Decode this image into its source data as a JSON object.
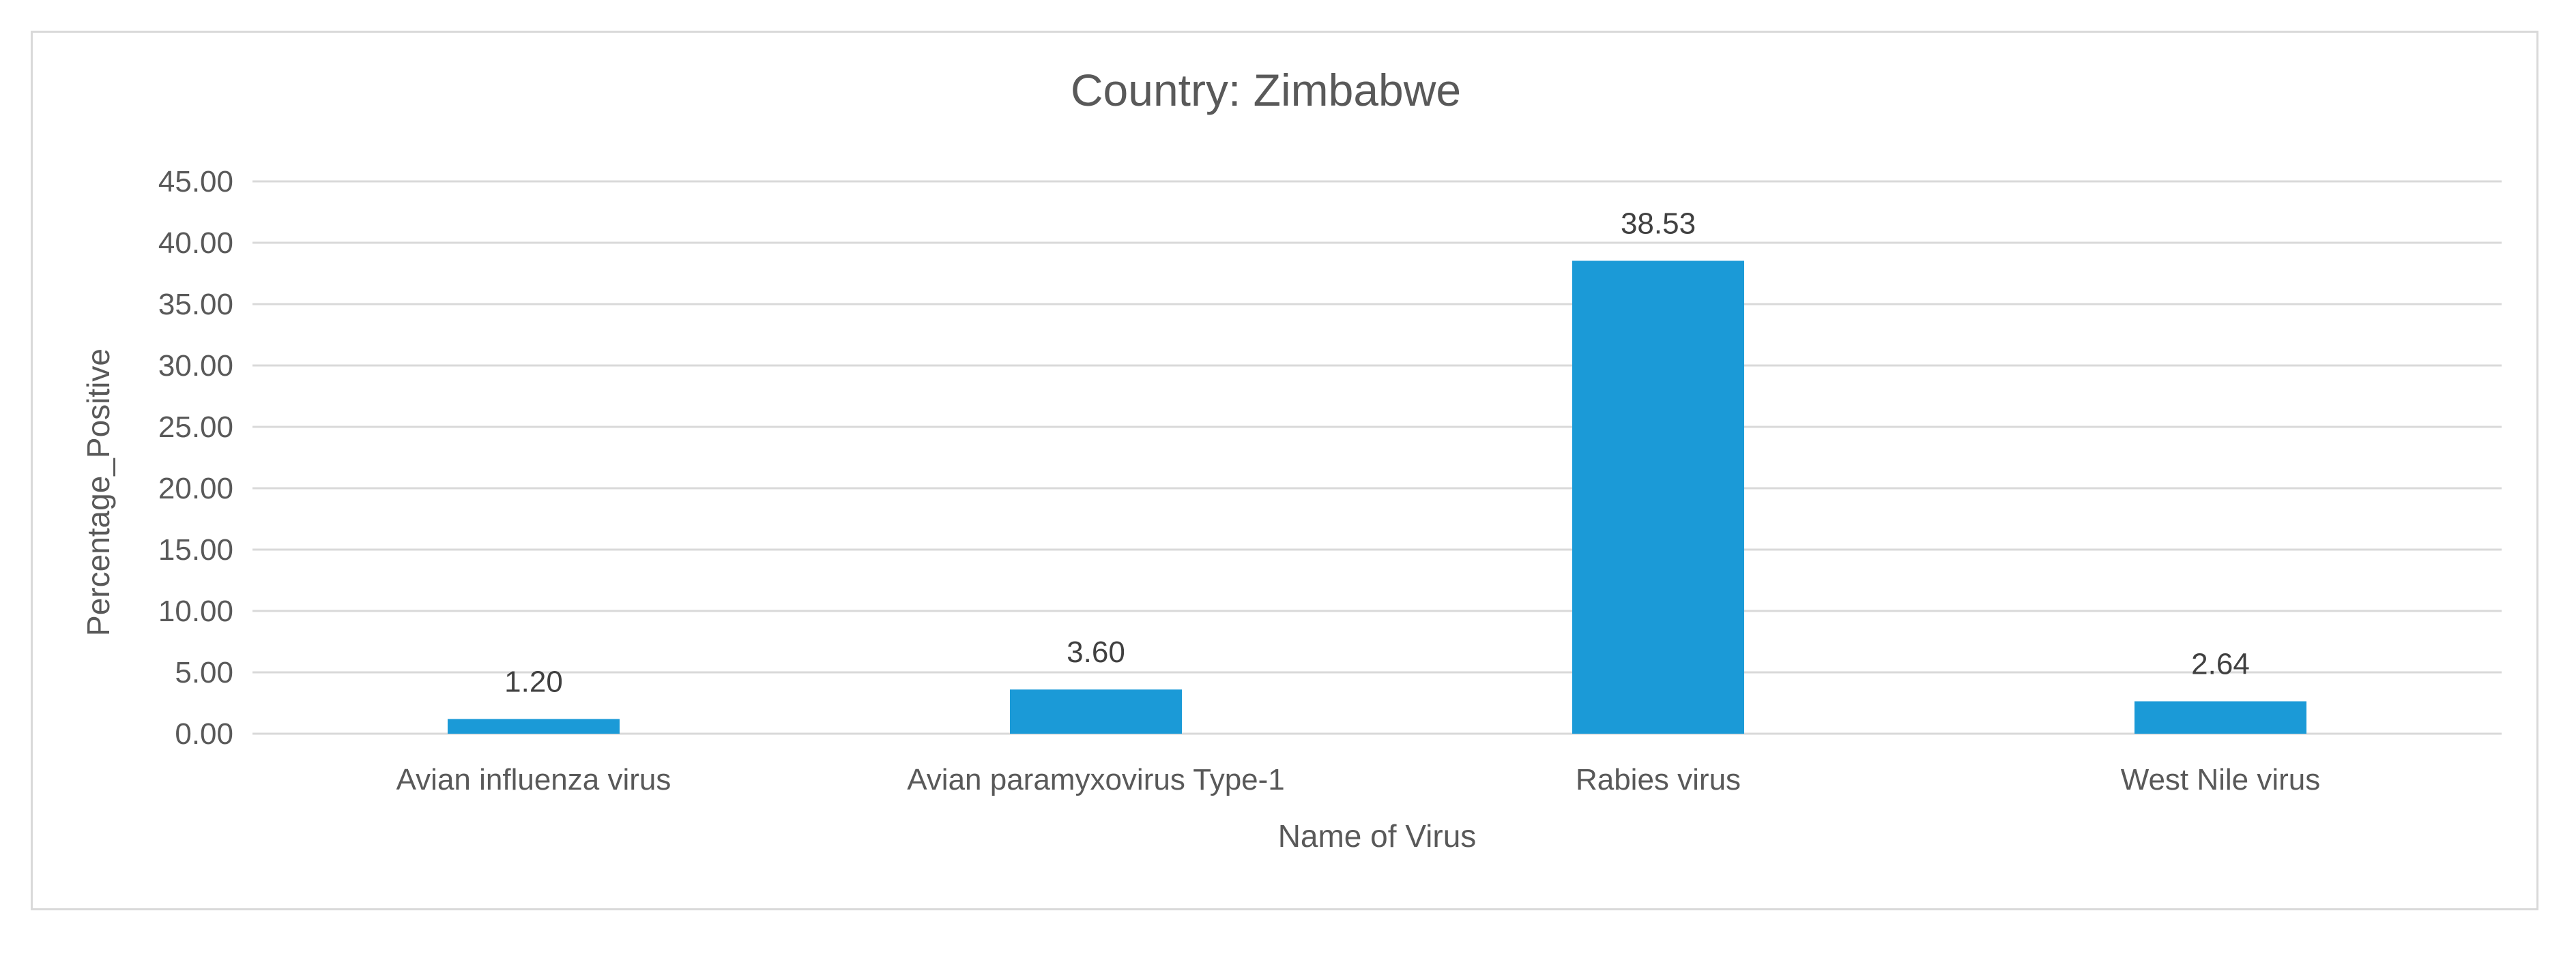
{
  "chart_data": {
    "type": "bar",
    "title": "Country: Zimbabwe",
    "xlabel": "Name of Virus",
    "ylabel": "Percentage_Positive",
    "categories": [
      "Avian influenza virus",
      "Avian paramyxovirus Type-1",
      "Rabies virus",
      "West Nile virus"
    ],
    "values": [
      1.2,
      3.6,
      38.53,
      2.64
    ],
    "value_labels": [
      "1.20",
      "3.60",
      "38.53",
      "2.64"
    ],
    "ylim": [
      0,
      45
    ],
    "yticks": [
      "0.00",
      "5.00",
      "10.00",
      "15.00",
      "20.00",
      "25.00",
      "30.00",
      "35.00",
      "40.00",
      "45.00"
    ],
    "ytick_values": [
      0,
      5,
      10,
      15,
      20,
      25,
      30,
      35,
      40,
      45
    ],
    "grid": true,
    "legend": "none",
    "bar_color": "#1b9ad7",
    "gridline_color": "#d9d9d9",
    "text_color": "#595959"
  }
}
